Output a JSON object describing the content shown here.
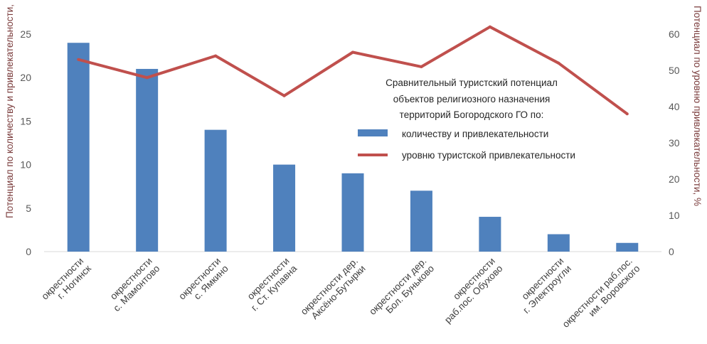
{
  "chart_data": {
    "type": "bar",
    "categories": [
      [
        "окрестности",
        "г. Ногинск"
      ],
      [
        "окрестности",
        "с. Мамонтово"
      ],
      [
        "окрестности",
        "с. Ямкино"
      ],
      [
        "окрестности",
        "г. Ст. Купавна"
      ],
      [
        "окрестности  дер.",
        "Аксёно-Бутырки"
      ],
      [
        "окрестности  дер.",
        "Бол. Буньково"
      ],
      [
        "окрестности",
        "раб.пос. Обухово"
      ],
      [
        "окрестности",
        "г. Электроугли"
      ],
      [
        "окрестности раб.пос.",
        "им. Воровского"
      ]
    ],
    "series": [
      {
        "name": "количеству и привлекательности",
        "type": "bar",
        "axis": "left",
        "values": [
          24,
          21,
          14,
          10,
          9,
          7,
          4,
          2,
          1
        ],
        "color": "#4f81bd"
      },
      {
        "name": "уровню туристской привлекательности",
        "type": "line",
        "axis": "right",
        "values": [
          53,
          48,
          54,
          43,
          55,
          51,
          62,
          52,
          38
        ],
        "color": "#c0504d"
      }
    ],
    "ylabel": "Потенциал по количеству и привлекательности,",
    "y2label": "Потенциал по уровню привлекательности, %",
    "ylim": [
      0,
      25
    ],
    "y2lim": [
      0,
      60
    ],
    "yticks": [
      0,
      5,
      10,
      15,
      20,
      25
    ],
    "y2ticks": [
      0,
      10,
      20,
      30,
      40,
      50,
      60
    ],
    "legend": {
      "title_lines": [
        "Сравнительный туристский потенциал",
        "объектов религиозного назначения",
        "территорий Богородского ГО по:"
      ],
      "placement": "center-right"
    },
    "grid": false
  }
}
